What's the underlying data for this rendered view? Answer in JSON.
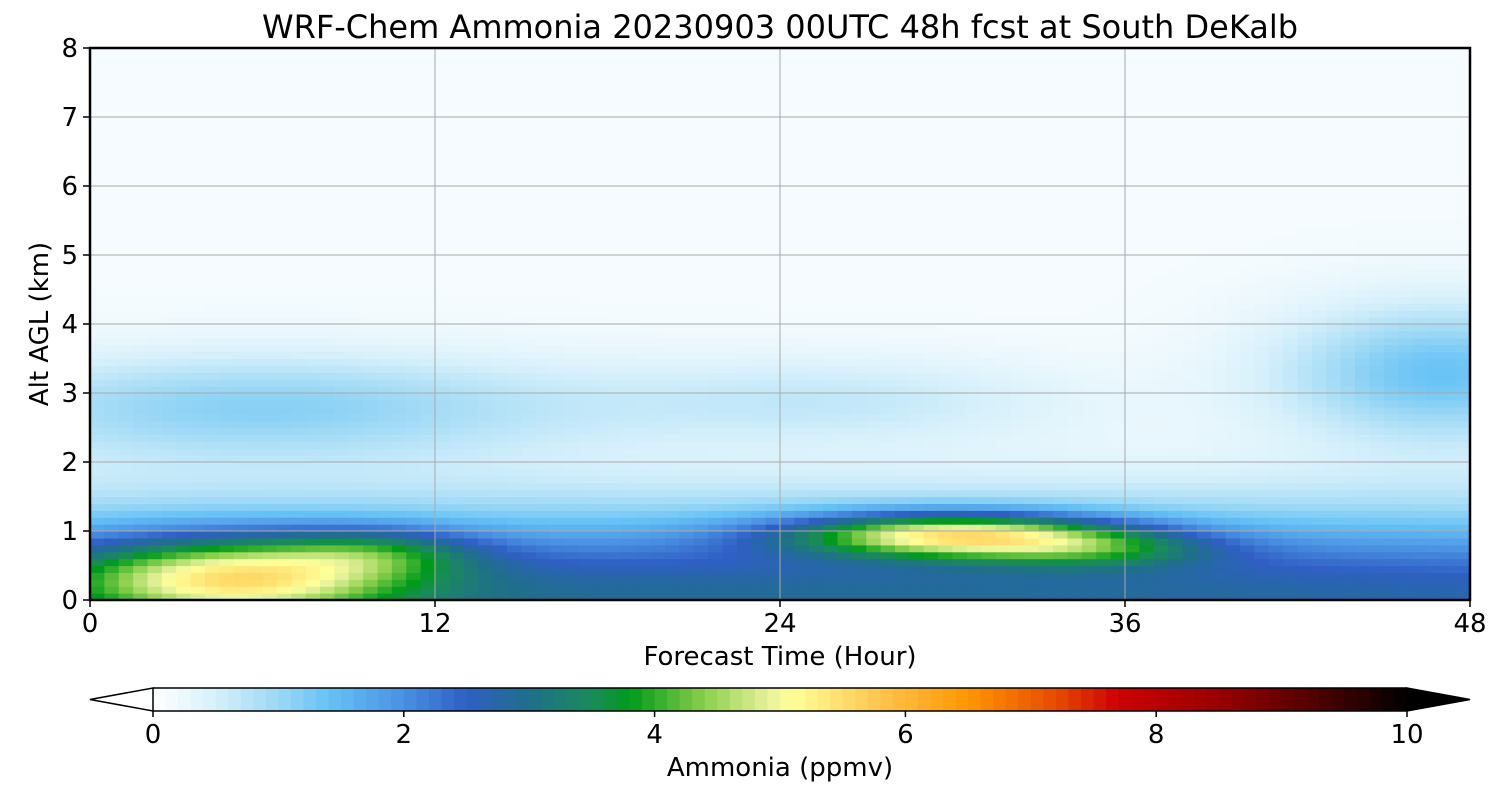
{
  "chart_data": {
    "type": "heatmap",
    "title": "WRF-Chem Ammonia  20230903 00UTC 48h fcst at South DeKalb",
    "xlabel": "Forecast Time (Hour)",
    "ylabel": "Alt AGL (km)",
    "xlim": [
      0,
      48
    ],
    "ylim": [
      0,
      8
    ],
    "x_ticks": [
      "0",
      "12",
      "24",
      "36",
      "48"
    ],
    "y_ticks": [
      "0",
      "1",
      "2",
      "3",
      "4",
      "5",
      "6",
      "7",
      "8"
    ],
    "grid": true,
    "colorbar": {
      "label": "Ammonia  (ppmv)",
      "range": [
        0,
        10
      ],
      "ticks": [
        "0",
        "2",
        "4",
        "6",
        "8",
        "10"
      ],
      "extend": "both",
      "orientation": "horizontal",
      "stops": [
        {
          "v": 0,
          "color": "#ffffff"
        },
        {
          "v": 0.5,
          "color": "#d6f0fb"
        },
        {
          "v": 1.0,
          "color": "#9cd8f5"
        },
        {
          "v": 1.4,
          "color": "#66c2f5"
        },
        {
          "v": 2.0,
          "color": "#4a90e2"
        },
        {
          "v": 2.5,
          "color": "#2f5fc4"
        },
        {
          "v": 3.0,
          "color": "#1f6f8b"
        },
        {
          "v": 3.5,
          "color": "#1a8b5a"
        },
        {
          "v": 3.8,
          "color": "#009a1a"
        },
        {
          "v": 4.4,
          "color": "#8bcf4d"
        },
        {
          "v": 4.9,
          "color": "#e6f29a"
        },
        {
          "v": 5.1,
          "color": "#ffff99"
        },
        {
          "v": 5.8,
          "color": "#ffc44d"
        },
        {
          "v": 6.5,
          "color": "#ff9600"
        },
        {
          "v": 7.2,
          "color": "#e64b00"
        },
        {
          "v": 7.7,
          "color": "#cc0000"
        },
        {
          "v": 8.5,
          "color": "#990000"
        },
        {
          "v": 9.3,
          "color": "#4d0000"
        },
        {
          "v": 10,
          "color": "#000000"
        }
      ]
    },
    "features": [
      {
        "name": "boundary-layer base",
        "x": 24,
        "x_spread": 60,
        "y": 0,
        "y_spread": 0.9,
        "value": 2.8
      },
      {
        "name": "low-level plume early",
        "x": 5,
        "x_spread": 4,
        "y": 0.35,
        "y_spread": 0.4,
        "value": 2.9
      },
      {
        "name": "low-level plume mid",
        "x": 30,
        "x_spread": 4,
        "y": 0.95,
        "y_spread": 0.22,
        "value": 3.6
      },
      {
        "name": "low-level plume late",
        "x": 35,
        "x_spread": 3,
        "y": 0.75,
        "y_spread": 0.2,
        "value": 1.3
      },
      {
        "name": "low-level plume 10h",
        "x": 10,
        "x_spread": 2.5,
        "y": 0.7,
        "y_spread": 0.25,
        "value": 1.2
      },
      {
        "name": "aloft layer early",
        "x": 6,
        "x_spread": 8,
        "y": 2.8,
        "y_spread": 0.55,
        "value": 1.0
      },
      {
        "name": "aloft layer mid",
        "x": 26,
        "x_spread": 6,
        "y": 2.9,
        "y_spread": 0.45,
        "value": 0.5
      },
      {
        "name": "aloft layer late",
        "x": 47,
        "x_spread": 4,
        "y": 3.3,
        "y_spread": 0.7,
        "value": 1.25
      }
    ]
  }
}
